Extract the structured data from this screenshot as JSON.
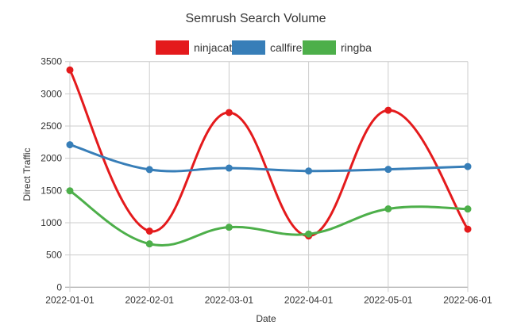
{
  "chart_data": {
    "type": "line",
    "title": "Semrush Search Volume",
    "xlabel": "Date",
    "ylabel": "Direct Traffic",
    "categories": [
      "2022-01-01",
      "2022-02-01",
      "2022-03-01",
      "2022-04-01",
      "2022-05-01",
      "2022-06-01"
    ],
    "ylim": [
      0,
      3500
    ],
    "yticks": [
      "0",
      "500",
      "1000",
      "1500",
      "2000",
      "2500",
      "3000",
      "3500"
    ],
    "grid": true,
    "legend_position": "top",
    "series": [
      {
        "name": "ninjacat",
        "color": "#e41a1c",
        "values": [
          3370,
          870,
          2710,
          795,
          2745,
          900
        ]
      },
      {
        "name": "callfire",
        "color": "#377eb8",
        "values": [
          2210,
          1825,
          1848,
          1803,
          1828,
          1872
        ]
      },
      {
        "name": "ringba",
        "color": "#4daf4a",
        "values": [
          1495,
          672,
          930,
          825,
          1215,
          1213
        ]
      }
    ]
  }
}
